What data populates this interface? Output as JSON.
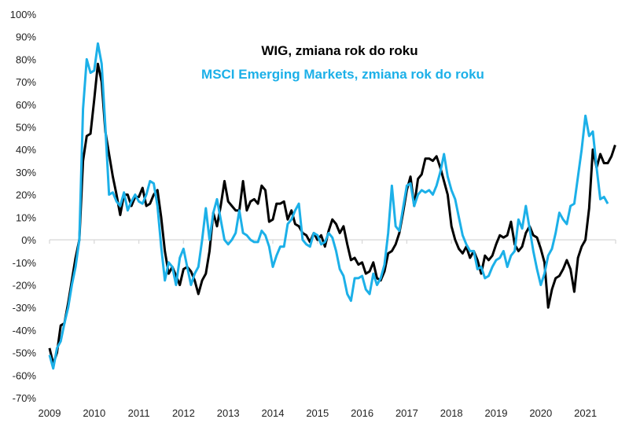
{
  "chart_data": {
    "type": "line",
    "title_lines": [
      "WIG, zmiana rok do roku",
      "MSCI Emerging Markets, zmiana rok do roku"
    ],
    "xlabel": "",
    "ylabel": "",
    "xlim": [
      2009,
      2021.8
    ],
    "ylim": [
      -70,
      100
    ],
    "y_ticks": [
      100,
      90,
      80,
      70,
      60,
      50,
      40,
      30,
      20,
      10,
      0,
      -10,
      -20,
      -30,
      -40,
      -50,
      -60,
      -70
    ],
    "y_tick_labels": [
      "100%",
      "90%",
      "80%",
      "70%",
      "60%",
      "50%",
      "40%",
      "30%",
      "20%",
      "10%",
      "0%",
      "-10%",
      "-20%",
      "-30%",
      "-40%",
      "-50%",
      "-60%",
      "-70%"
    ],
    "x_ticks": [
      2009,
      2010,
      2011,
      2012,
      2013,
      2014,
      2015,
      2016,
      2017,
      2018,
      2019,
      2020,
      2021
    ],
    "x_tick_labels": [
      "2009",
      "2010",
      "2011",
      "2012",
      "2013",
      "2014",
      "2015",
      "2016",
      "2017",
      "2018",
      "2019",
      "2020",
      "2021"
    ],
    "x_start": 2009,
    "x_step_years": 0.08333,
    "grid": false,
    "zero_line": true,
    "colors": {
      "wig": "#000000",
      "msci": "#1cb0e8",
      "axis": "#d9d9d9"
    },
    "series": [
      {
        "name": "WIG, zmiana rok do roku",
        "color": "#000000",
        "values": [
          -48,
          -55,
          -50,
          -38,
          -37,
          -28,
          -18,
          -8,
          0,
          35,
          46,
          47,
          62,
          78,
          70,
          48,
          38,
          28,
          20,
          11,
          20,
          20,
          15,
          19,
          19,
          23,
          15,
          16,
          20,
          22,
          10,
          -5,
          -15,
          -12,
          -16,
          -20,
          -13,
          -12,
          -14,
          -18,
          -24,
          -18,
          -15,
          -5,
          12,
          6,
          15,
          26,
          17,
          15,
          13,
          13,
          26,
          13,
          17,
          18,
          16,
          24,
          22,
          8,
          9,
          16,
          16,
          17,
          9,
          13,
          7,
          6,
          3,
          2,
          -1,
          3,
          0,
          2,
          -3,
          4,
          9,
          7,
          3,
          6,
          -2,
          -9,
          -8,
          -11,
          -10,
          -15,
          -14,
          -10,
          -17,
          -18,
          -14,
          -6,
          -5,
          -2,
          3,
          12,
          22,
          28,
          15,
          27,
          29,
          36,
          36,
          35,
          37,
          32,
          26,
          20,
          6,
          0,
          -4,
          -6,
          -3,
          -8,
          -5,
          -9,
          -15,
          -7,
          -9,
          -7,
          -2,
          2,
          1,
          2,
          8,
          -2,
          -5,
          -3,
          3,
          6,
          2,
          1,
          -4,
          -10,
          -30,
          -22,
          -17,
          -16,
          -13,
          -9,
          -13,
          -23,
          -8,
          -3,
          0,
          14,
          40,
          32,
          38,
          34,
          34,
          37,
          42
        ]
      },
      {
        "name": "MSCI Emerging Markets, zmiana rok do roku",
        "color": "#1cb0e8",
        "values": [
          -51,
          -57,
          -48,
          -45,
          -37,
          -30,
          -20,
          -12,
          0,
          58,
          80,
          74,
          75,
          87,
          78,
          50,
          20,
          21,
          17,
          15,
          21,
          13,
          17,
          20,
          17,
          16,
          20,
          26,
          25,
          15,
          -3,
          -18,
          -10,
          -12,
          -20,
          -8,
          -4,
          -12,
          -20,
          -15,
          -12,
          0,
          14,
          0,
          12,
          18,
          9,
          0,
          -2,
          0,
          3,
          13,
          3,
          2,
          0,
          -1,
          -1,
          4,
          2,
          -3,
          -12,
          -7,
          -3,
          -3,
          7,
          9,
          13,
          16,
          0,
          -2,
          -3,
          3,
          2,
          -2,
          -1,
          3,
          1,
          -5,
          -13,
          -16,
          -24,
          -27,
          -17,
          -17,
          -16,
          -22,
          -24,
          -15,
          -20,
          -17,
          -11,
          3,
          24,
          6,
          4,
          14,
          24,
          25,
          15,
          20,
          22,
          21,
          22,
          20,
          24,
          30,
          38,
          28,
          22,
          18,
          10,
          2,
          -2,
          -5,
          -5,
          -13,
          -12,
          -17,
          -16,
          -12,
          -9,
          -8,
          -5,
          -12,
          -7,
          -5,
          9,
          5,
          15,
          5,
          -5,
          -13,
          -20,
          -15,
          -7,
          -4,
          3,
          12,
          9,
          7,
          15,
          16,
          28,
          40,
          55,
          46,
          48,
          32,
          18,
          19,
          16
        ]
      }
    ]
  }
}
